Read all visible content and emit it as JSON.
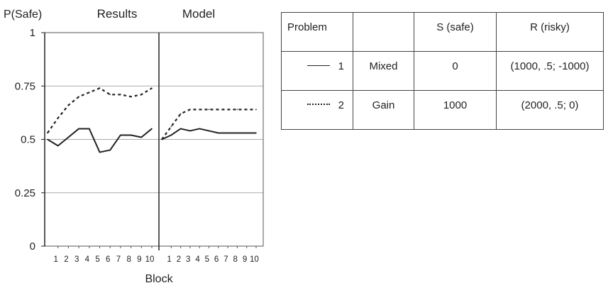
{
  "chart_data": {
    "type": "line",
    "ylabel": "P(Safe)",
    "xlabel": "Block",
    "ylim": [
      0,
      1
    ],
    "yticks": [
      "0",
      "0.25",
      "0.5",
      "0.75",
      "1"
    ],
    "ytick_values": [
      0,
      0.25,
      0.5,
      0.75,
      1
    ],
    "grid": "horizontal",
    "panels": [
      {
        "title": "Results",
        "xticks": [
          "1",
          "2",
          "3",
          "4",
          "5",
          "6",
          "7",
          "8",
          "9",
          "10"
        ],
        "series": [
          {
            "problem": "1",
            "style": "solid",
            "x": [
              0,
              1,
              2,
              3,
              4,
              5,
              6,
              7,
              8,
              9,
              10
            ],
            "y": [
              0.5,
              0.47,
              0.51,
              0.55,
              0.55,
              0.44,
              0.45,
              0.52,
              0.52,
              0.51,
              0.55
            ]
          },
          {
            "problem": "2",
            "style": "dashed",
            "x": [
              0,
              1,
              2,
              3,
              4,
              5,
              6,
              7,
              8,
              9,
              10
            ],
            "y": [
              0.53,
              0.6,
              0.66,
              0.7,
              0.72,
              0.74,
              0.71,
              0.71,
              0.7,
              0.71,
              0.74
            ]
          }
        ]
      },
      {
        "title": "Model",
        "xticks": [
          "1",
          "2",
          "3",
          "4",
          "5",
          "6",
          "7",
          "8",
          "9",
          "10"
        ],
        "series": [
          {
            "problem": "1",
            "style": "solid",
            "x": [
              0,
              1,
              2,
              3,
              4,
              5,
              6,
              7,
              8,
              9,
              10
            ],
            "y": [
              0.5,
              0.52,
              0.55,
              0.54,
              0.55,
              0.54,
              0.53,
              0.53,
              0.53,
              0.53,
              0.53
            ]
          },
          {
            "problem": "2",
            "style": "dashed",
            "x": [
              0,
              1,
              2,
              3,
              4,
              5,
              6,
              7,
              8,
              9,
              10
            ],
            "y": [
              0.5,
              0.56,
              0.62,
              0.64,
              0.64,
              0.64,
              0.64,
              0.64,
              0.64,
              0.64,
              0.64
            ]
          }
        ]
      }
    ]
  },
  "table": {
    "headers": [
      "Problem",
      "",
      "S (safe)",
      "R (risky)"
    ],
    "rows": [
      {
        "problem": "1",
        "style": "solid",
        "domain": "Mixed",
        "safe": "0",
        "risky": "(1000, .5; -1000)"
      },
      {
        "problem": "2",
        "style": "dashed",
        "domain": "Gain",
        "safe": "1000",
        "risky": "(2000, .5; 0)"
      }
    ]
  }
}
